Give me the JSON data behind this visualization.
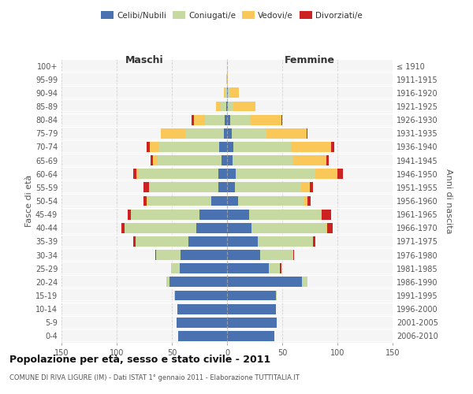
{
  "age_groups": [
    "0-4",
    "5-9",
    "10-14",
    "15-19",
    "20-24",
    "25-29",
    "30-34",
    "35-39",
    "40-44",
    "45-49",
    "50-54",
    "55-59",
    "60-64",
    "65-69",
    "70-74",
    "75-79",
    "80-84",
    "85-89",
    "90-94",
    "95-99",
    "100+"
  ],
  "birth_years": [
    "2006-2010",
    "2001-2005",
    "1996-2000",
    "1991-1995",
    "1986-1990",
    "1981-1985",
    "1976-1980",
    "1971-1975",
    "1966-1970",
    "1961-1965",
    "1956-1960",
    "1951-1955",
    "1946-1950",
    "1941-1945",
    "1936-1940",
    "1931-1935",
    "1926-1930",
    "1921-1925",
    "1916-1920",
    "1911-1915",
    "≤ 1910"
  ],
  "maschi": {
    "celibi": [
      44,
      46,
      45,
      47,
      52,
      43,
      42,
      35,
      28,
      25,
      14,
      8,
      8,
      5,
      7,
      3,
      2,
      1,
      0,
      0,
      0
    ],
    "coniugati": [
      0,
      0,
      0,
      1,
      3,
      8,
      22,
      48,
      65,
      62,
      58,
      62,
      72,
      58,
      55,
      35,
      18,
      5,
      2,
      1,
      0
    ],
    "vedovi": [
      0,
      0,
      0,
      0,
      0,
      0,
      0,
      0,
      0,
      0,
      1,
      1,
      2,
      4,
      8,
      22,
      10,
      4,
      1,
      0,
      0
    ],
    "divorziati": [
      0,
      0,
      0,
      0,
      0,
      0,
      1,
      2,
      3,
      3,
      3,
      5,
      3,
      2,
      3,
      0,
      2,
      0,
      0,
      0,
      0
    ]
  },
  "femmine": {
    "nubili": [
      43,
      45,
      44,
      44,
      68,
      38,
      30,
      28,
      22,
      20,
      10,
      7,
      8,
      5,
      6,
      4,
      3,
      1,
      1,
      0,
      0
    ],
    "coniugate": [
      0,
      0,
      0,
      1,
      5,
      10,
      30,
      50,
      68,
      65,
      60,
      60,
      72,
      55,
      52,
      32,
      18,
      5,
      2,
      0,
      0
    ],
    "vedove": [
      0,
      0,
      0,
      0,
      0,
      0,
      0,
      0,
      1,
      1,
      3,
      8,
      20,
      30,
      36,
      36,
      28,
      20,
      8,
      1,
      0
    ],
    "divorziate": [
      0,
      0,
      0,
      0,
      0,
      1,
      1,
      2,
      5,
      8,
      3,
      3,
      5,
      2,
      3,
      1,
      1,
      0,
      0,
      0,
      0
    ]
  },
  "colors": {
    "celibi": "#4A72B0",
    "coniugati": "#C5D9A0",
    "vedovi": "#FAC858",
    "divorziati": "#CC2222"
  },
  "xlim": 150,
  "title": "Popolazione per età, sesso e stato civile - 2011",
  "subtitle": "COMUNE DI RIVA LIGURE (IM) - Dati ISTAT 1° gennaio 2011 - Elaborazione TUTTITALIA.IT",
  "ylabel_left": "Fasce di età",
  "ylabel_right": "Anni di nascita",
  "xlabel_maschi": "Maschi",
  "xlabel_femmine": "Femmine",
  "bg_color": "#f5f5f5",
  "grid_color": "#cccccc"
}
